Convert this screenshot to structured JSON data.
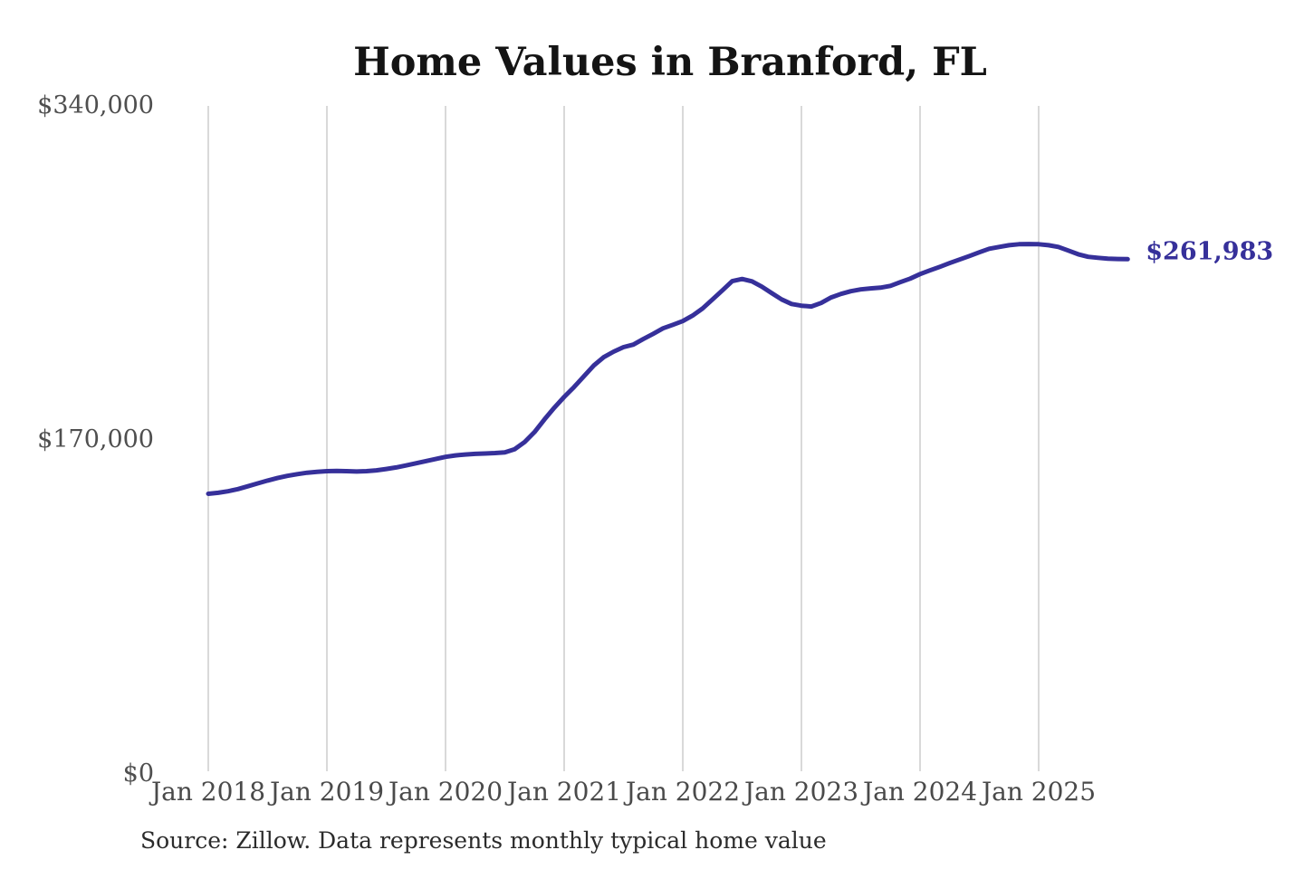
{
  "chart_data": {
    "type": "line",
    "title": "Home Values in Branford, FL",
    "source_note": "Source: Zillow. Data represents monthly typical home value",
    "end_label": "$261,983",
    "latest_value": 261983,
    "accent_color": "#36309a",
    "grid_color": "#c9c9c9",
    "grid": "vertical-only",
    "legend": "none",
    "ylim": [
      0,
      340000
    ],
    "y_ticks": [
      {
        "value": 340000,
        "label": "$340,000"
      },
      {
        "value": 170000,
        "label": "$170,000"
      },
      {
        "value": 0,
        "label": "$0"
      }
    ],
    "x_tick_labels": [
      "Jan 2018",
      "Jan 2019",
      "Jan 2020",
      "Jan 2021",
      "Jan 2022",
      "Jan 2023",
      "Jan 2024",
      "Jan 2025"
    ],
    "series": [
      {
        "name": "Monthly typical home value",
        "color": "#36309a",
        "x": [
          "2018-01",
          "2018-02",
          "2018-03",
          "2018-04",
          "2018-05",
          "2018-06",
          "2018-07",
          "2018-08",
          "2018-09",
          "2018-10",
          "2018-11",
          "2018-12",
          "2019-01",
          "2019-02",
          "2019-03",
          "2019-04",
          "2019-05",
          "2019-06",
          "2019-07",
          "2019-08",
          "2019-09",
          "2019-10",
          "2019-11",
          "2019-12",
          "2020-01",
          "2020-02",
          "2020-03",
          "2020-04",
          "2020-05",
          "2020-06",
          "2020-07",
          "2020-08",
          "2020-09",
          "2020-10",
          "2020-11",
          "2020-12",
          "2021-01",
          "2021-02",
          "2021-03",
          "2021-04",
          "2021-05",
          "2021-06",
          "2021-07",
          "2021-08",
          "2021-09",
          "2021-10",
          "2021-11",
          "2021-12",
          "2022-01",
          "2022-02",
          "2022-03",
          "2022-04",
          "2022-05",
          "2022-06",
          "2022-07",
          "2022-08",
          "2022-09",
          "2022-10",
          "2022-11",
          "2022-12",
          "2023-01",
          "2023-02",
          "2023-03",
          "2023-04",
          "2023-05",
          "2023-06",
          "2023-07",
          "2023-08",
          "2023-09",
          "2023-10",
          "2023-11",
          "2023-12",
          "2024-01",
          "2024-02",
          "2024-03",
          "2024-04",
          "2024-05",
          "2024-06",
          "2024-07",
          "2024-08",
          "2024-09",
          "2024-10",
          "2024-11",
          "2024-12",
          "2025-01",
          "2025-02",
          "2025-03",
          "2025-04",
          "2025-05",
          "2025-06",
          "2025-07",
          "2025-08",
          "2025-09",
          "2025-10"
        ],
        "values": [
          142600,
          143100,
          143900,
          145000,
          146400,
          147900,
          149300,
          150600,
          151700,
          152600,
          153300,
          153800,
          154100,
          154200,
          154100,
          153900,
          154100,
          154500,
          155200,
          156000,
          157000,
          158100,
          159200,
          160300,
          161400,
          162100,
          162600,
          162900,
          163100,
          163300,
          163700,
          165300,
          168900,
          174000,
          180400,
          186400,
          191900,
          196900,
          202400,
          207900,
          212100,
          214900,
          217200,
          218500,
          221300,
          224000,
          226800,
          228600,
          230500,
          233300,
          236900,
          241500,
          246100,
          250800,
          251900,
          250700,
          248000,
          244700,
          241500,
          239200,
          238300,
          237900,
          239700,
          242500,
          244300,
          245700,
          246600,
          247100,
          247500,
          248400,
          250300,
          252100,
          254400,
          256300,
          258100,
          260000,
          261800,
          263600,
          265500,
          267300,
          268200,
          269100,
          269600,
          269700,
          269600,
          269100,
          268200,
          266400,
          264500,
          263200,
          262700,
          262300,
          262100,
          261983
        ]
      }
    ]
  }
}
